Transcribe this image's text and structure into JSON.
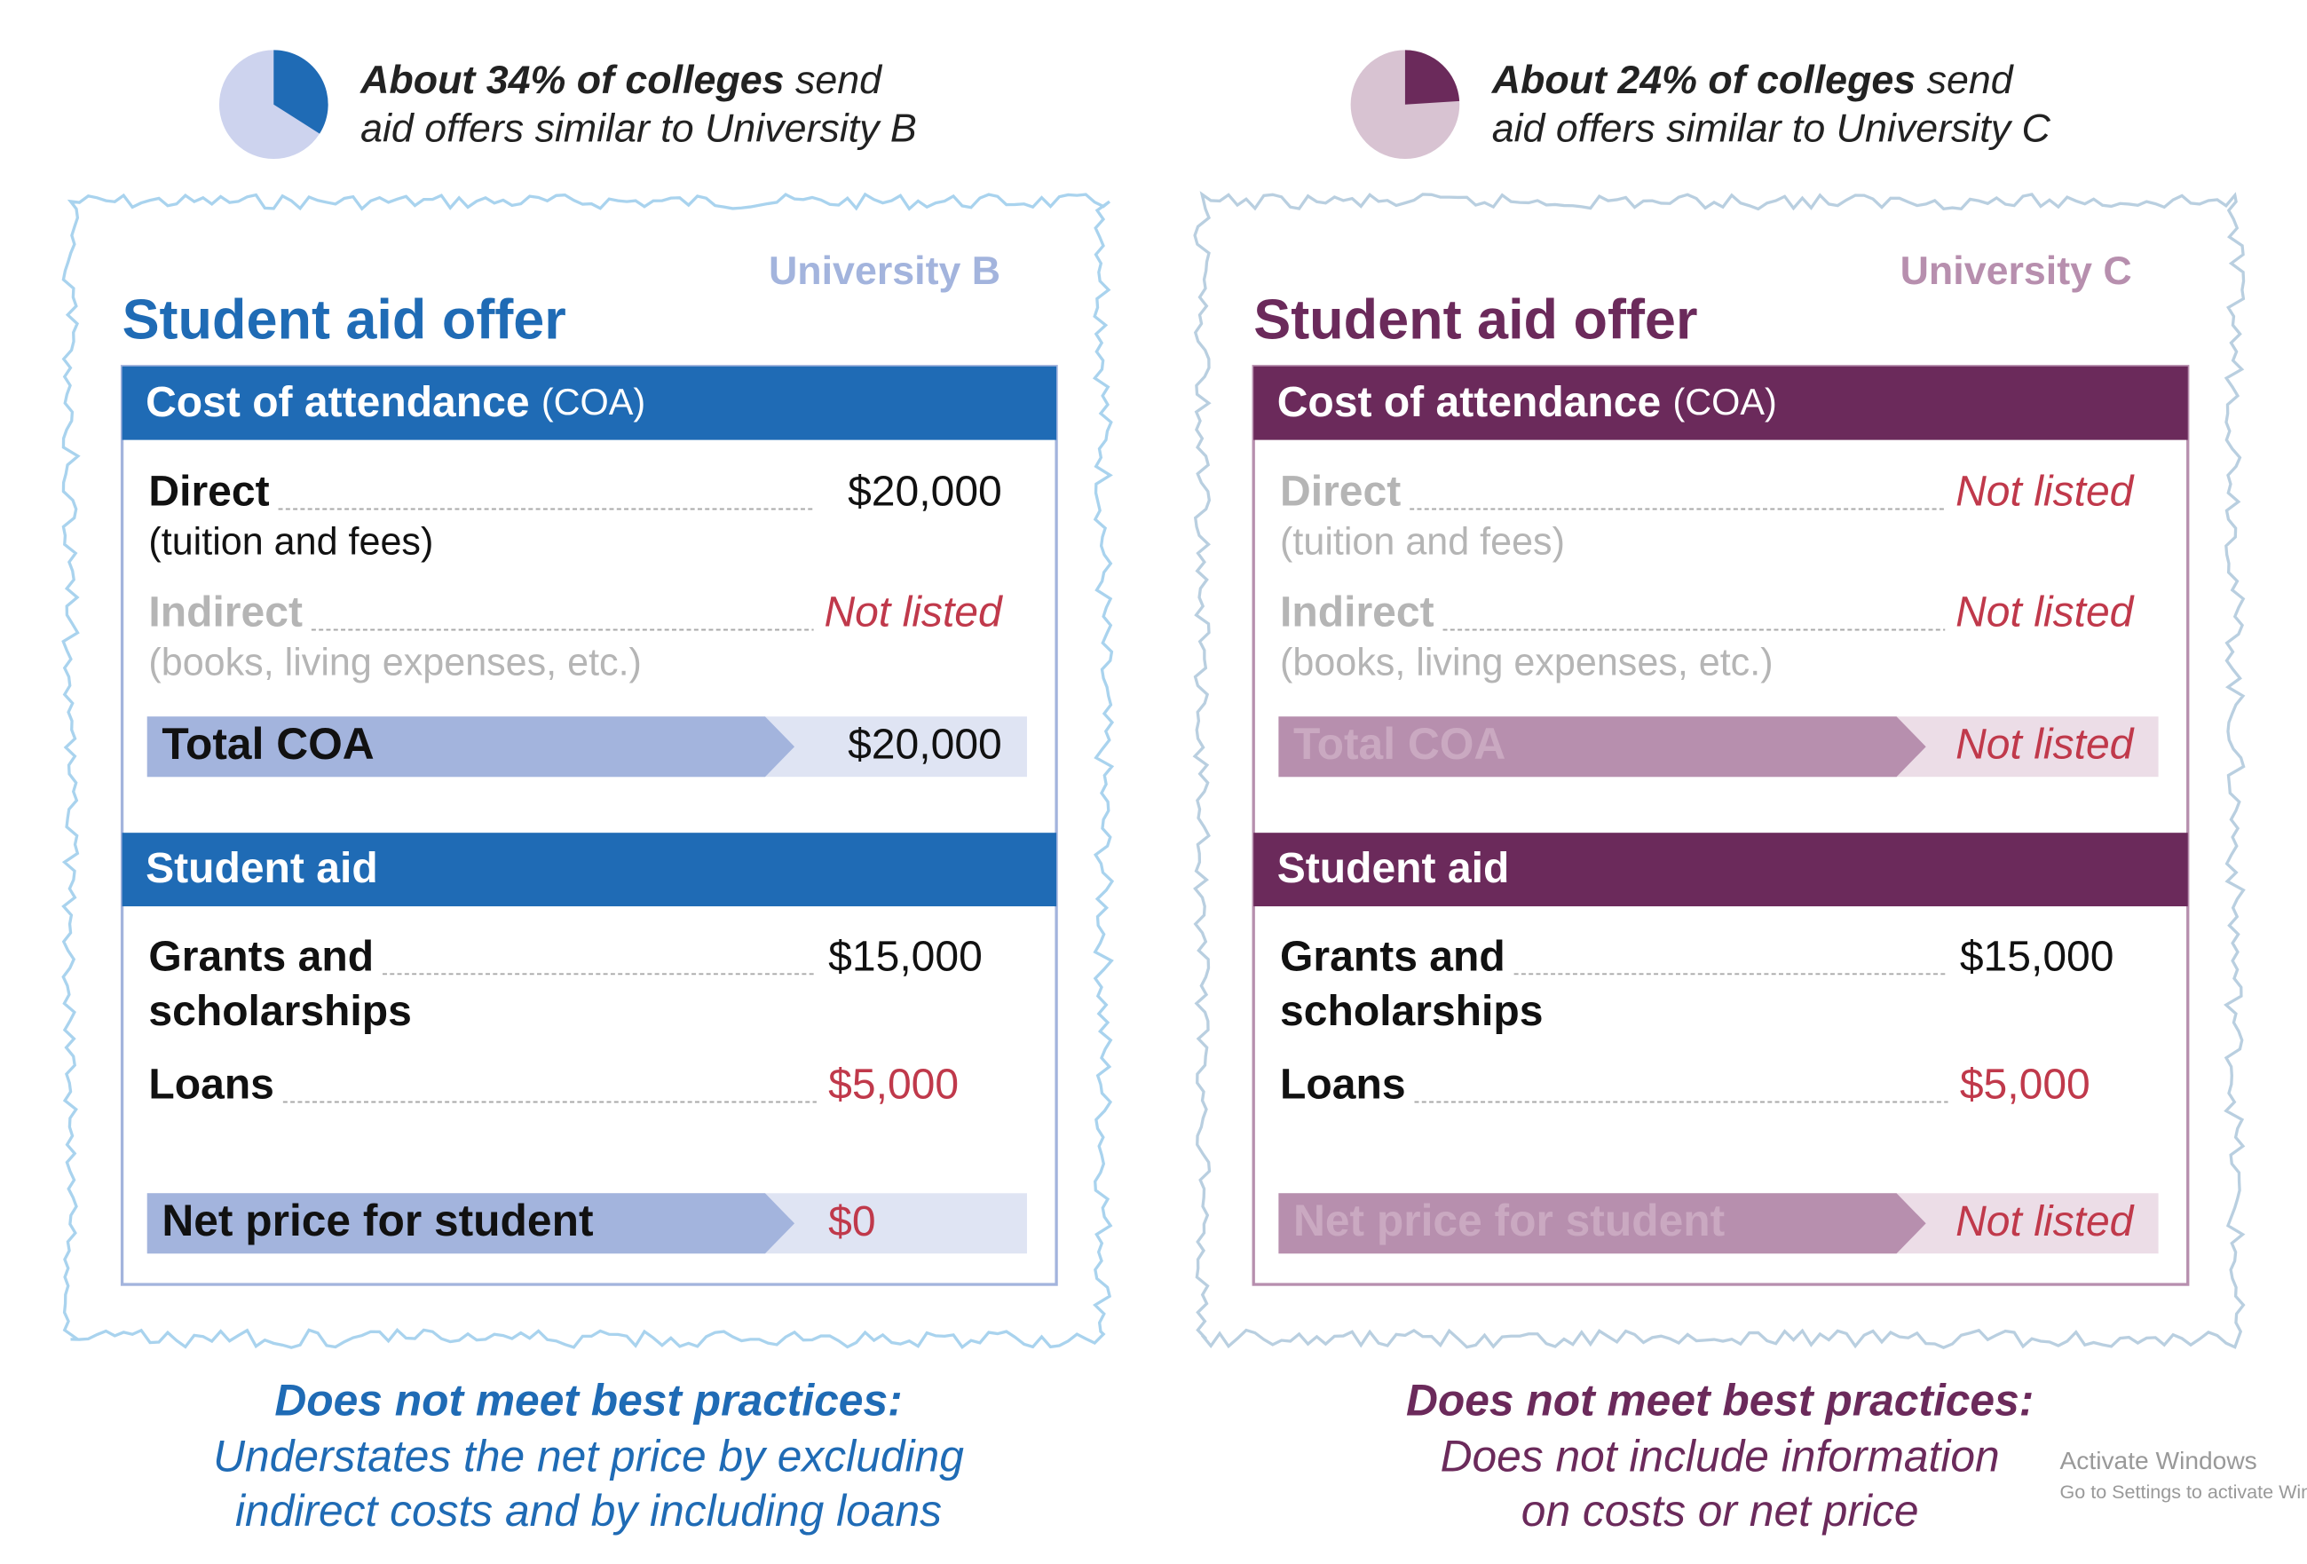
{
  "panels": [
    {
      "pie_percent": 34,
      "color": "#1f6bb5",
      "headline_bold": "About 34% of colleges",
      "headline_rest": " send",
      "headline_line2": "aid offers similar to University B",
      "school": "University B",
      "title": "Student aid offer",
      "coa_header": "Cost of attendance",
      "coa_abbr": "(COA)",
      "coa_rows": [
        {
          "label": "Direct",
          "sub": "(tuition and fees)",
          "value": "$20,000"
        },
        {
          "label": "Indirect",
          "sub": "(books, living expenses, etc.)",
          "value": "Not listed"
        }
      ],
      "total_label": "Total COA",
      "total_value": "$20,000",
      "aid_header": "Student aid",
      "aid_rows": [
        {
          "label_lines": [
            "Grants and",
            "scholarships"
          ],
          "value": "$15,000"
        },
        {
          "label_lines": [
            "Loans"
          ],
          "value": "$5,000"
        }
      ],
      "net_label": "Net price for student",
      "net_value": "$0",
      "verdict": "Does not meet best practices:",
      "explanation": [
        "Understates the net price by excluding",
        "indirect costs and by including loans"
      ]
    },
    {
      "pie_percent": 24,
      "color": "#6b2a5b",
      "headline_bold": "About 24% of colleges",
      "headline_rest": " send",
      "headline_line2": "aid offers similar to University C",
      "school": "University C",
      "title": "Student aid offer",
      "coa_header": "Cost of attendance",
      "coa_abbr": "(COA)",
      "coa_rows": [
        {
          "label": "Direct",
          "sub": "(tuition and fees)",
          "value": "Not listed"
        },
        {
          "label": "Indirect",
          "sub": "(books, living expenses, etc.)",
          "value": "Not listed"
        }
      ],
      "total_label": "Total COA",
      "total_value": "Not listed",
      "aid_header": "Student aid",
      "aid_rows": [
        {
          "label_lines": [
            "Grants and",
            "scholarships"
          ],
          "value": "$15,000"
        },
        {
          "label_lines": [
            "Loans"
          ],
          "value": "$5,000"
        }
      ],
      "net_label": "Net price for student",
      "net_value": "Not listed",
      "verdict": "Does not meet best practices:",
      "explanation": [
        "Does not include information",
        "on costs or net price"
      ]
    }
  ],
  "watermark": {
    "title": "Activate Windows",
    "sub": "Go to Settings to activate Windows"
  }
}
